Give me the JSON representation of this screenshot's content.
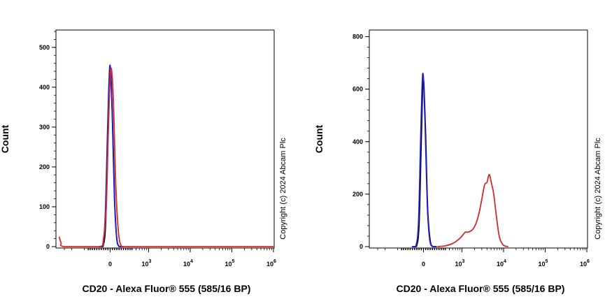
{
  "chart_data": [
    {
      "type": "line",
      "title": "",
      "xlabel": "CD20 - Alexa Fluor® 555 (585/16 BP)",
      "ylabel": "Count",
      "ylim": [
        0,
        540
      ],
      "yticks": [
        0,
        100,
        200,
        300,
        400,
        500
      ],
      "ytick_labels": [
        "0",
        "100",
        "200",
        "300",
        "400",
        "500"
      ],
      "xscale": "biexponential",
      "xticks": [
        0,
        1000,
        10000,
        100000,
        1000000
      ],
      "xtick_labels": [
        {
          "base": "0",
          "exp": ""
        },
        {
          "base": "10",
          "exp": "3"
        },
        {
          "base": "10",
          "exp": "4"
        },
        {
          "base": "10",
          "exp": "5"
        },
        {
          "base": "10",
          "exp": "6"
        }
      ],
      "copyright": "Copyright (c) 2024 Abcam Plc",
      "series": [
        {
          "name": "Black",
          "color": "#000000",
          "x": [
            -200,
            -130,
            -80,
            -40,
            0,
            40,
            80,
            120,
            170,
            240
          ],
          "y": [
            0,
            0,
            60,
            280,
            440,
            330,
            120,
            20,
            0,
            0
          ]
        },
        {
          "name": "Blue",
          "color": "#1f1fcc",
          "x": [
            -200,
            -140,
            -90,
            -45,
            -5,
            35,
            75,
            115,
            160,
            230
          ],
          "y": [
            0,
            0,
            70,
            300,
            455,
            340,
            130,
            25,
            0,
            0
          ]
        },
        {
          "name": "Red",
          "color": "#d42a2a",
          "x": [
            -2000,
            -1800,
            -1500,
            -200,
            -120,
            -70,
            -30,
            10,
            55,
            100,
            150,
            210,
            300,
            1000,
            1000000
          ],
          "y": [
            25,
            10,
            0,
            0,
            20,
            100,
            300,
            445,
            380,
            160,
            35,
            0,
            0,
            0,
            0
          ]
        }
      ]
    },
    {
      "type": "line",
      "title": "",
      "xlabel": "CD20 - Alexa Fluor® 555 (585/16 BP)",
      "ylabel": "Count",
      "ylim": [
        0,
        820
      ],
      "yticks": [
        0,
        200,
        400,
        600,
        800
      ],
      "ytick_labels": [
        "0",
        "200",
        "400",
        "600",
        "800"
      ],
      "xscale": "biexponential",
      "xticks": [
        0,
        1000,
        10000,
        100000,
        1000000
      ],
      "xtick_labels": [
        {
          "base": "0",
          "exp": ""
        },
        {
          "base": "10",
          "exp": "3"
        },
        {
          "base": "10",
          "exp": "4"
        },
        {
          "base": "10",
          "exp": "5"
        },
        {
          "base": "10",
          "exp": "6"
        }
      ],
      "copyright": "Copyright (c) 2024 Abcam Plc",
      "series": [
        {
          "name": "Black",
          "color": "#000000",
          "x": [
            -200,
            -130,
            -80,
            -40,
            -5,
            35,
            75,
            120,
            170,
            240
          ],
          "y": [
            0,
            0,
            80,
            400,
            640,
            450,
            150,
            25,
            0,
            0
          ]
        },
        {
          "name": "Blue",
          "color": "#1f1fcc",
          "x": [
            -210,
            -140,
            -90,
            -50,
            -12,
            28,
            68,
            110,
            160,
            230
          ],
          "y": [
            0,
            0,
            90,
            420,
            660,
            470,
            160,
            30,
            0,
            0
          ]
        },
        {
          "name": "Red",
          "color": "#d42a2a",
          "x": [
            250,
            400,
            600,
            800,
            1000,
            1200,
            1400,
            1800,
            2200,
            2600,
            3000,
            3500,
            4000,
            4500,
            5000,
            5800,
            6800,
            8000,
            10000,
            13000
          ],
          "y": [
            0,
            3,
            12,
            25,
            40,
            55,
            55,
            65,
            90,
            130,
            180,
            235,
            245,
            275,
            250,
            200,
            110,
            35,
            5,
            0
          ]
        }
      ]
    }
  ]
}
